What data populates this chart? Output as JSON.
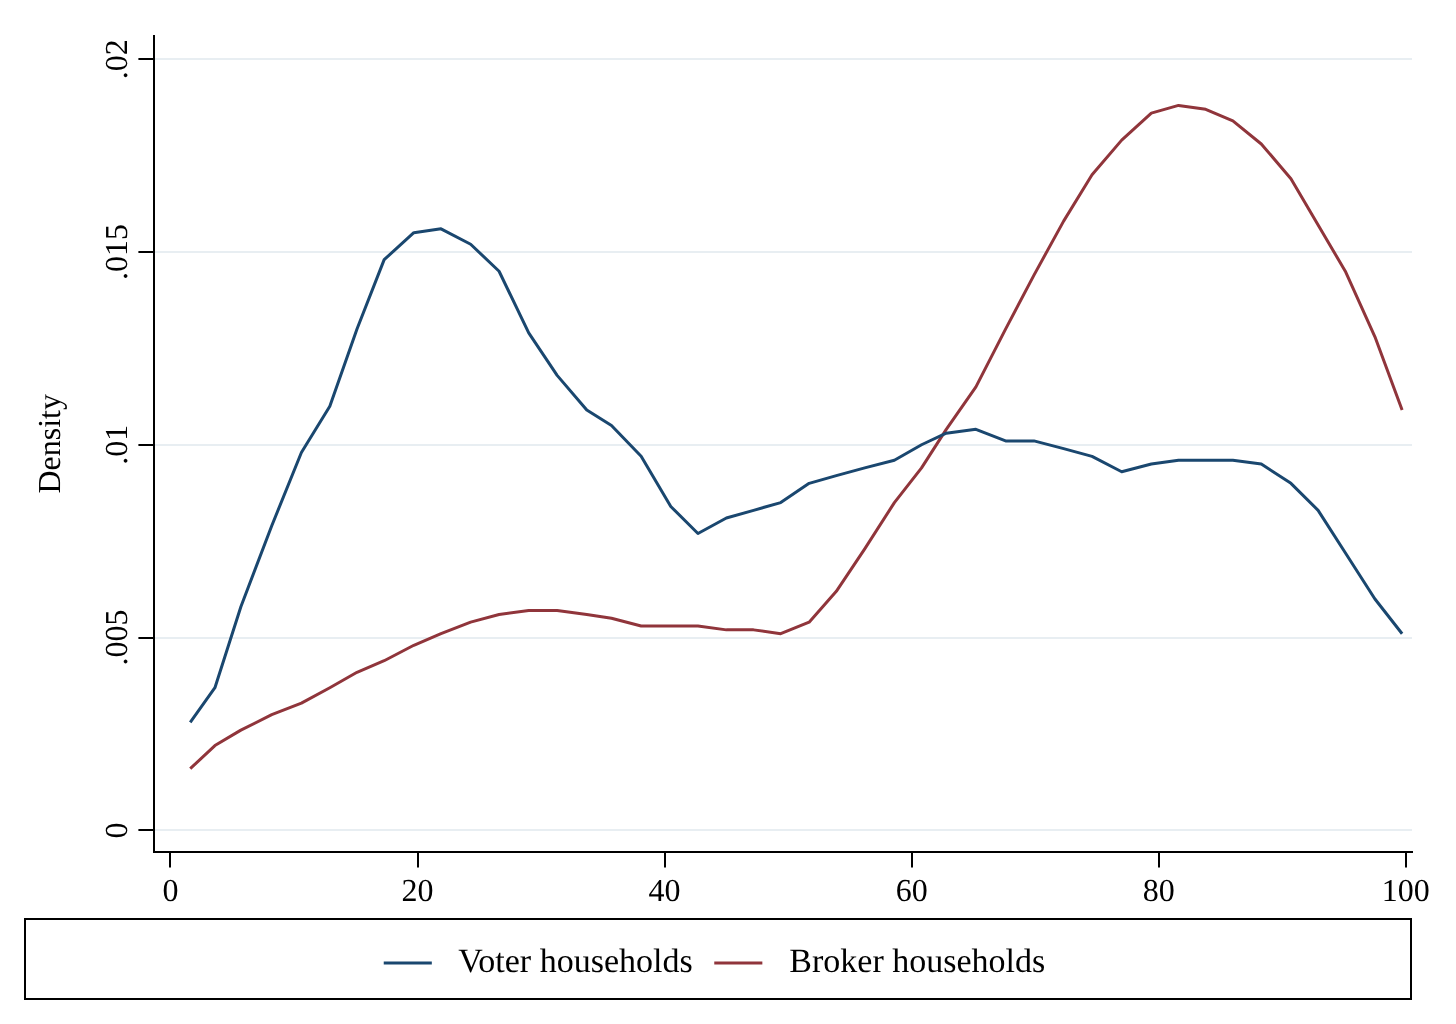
{
  "chart_data": {
    "type": "line",
    "ylabel": "Density",
    "xlim": [
      -1.3,
      100.5
    ],
    "ylim": [
      -0.00055,
      0.0206
    ],
    "xticks": [
      0,
      20,
      40,
      60,
      80,
      100
    ],
    "yticks": [
      {
        "value": 0,
        "label": "0"
      },
      {
        "value": 0.005,
        "label": ".005"
      },
      {
        "value": 0.01,
        "label": ".01"
      },
      {
        "value": 0.015,
        "label": ".015"
      },
      {
        "value": 0.02,
        "label": ".02"
      }
    ],
    "grid": "y",
    "legend": "bottom",
    "marker": "none",
    "line_style": "solid",
    "series": [
      {
        "name": "Voter households",
        "color": "#1a476f",
        "x": [
          1.6,
          3.6,
          5.7,
          8.2,
          10.6,
          12.9,
          15.1,
          17.3,
          19.7,
          21.9,
          24.3,
          26.6,
          29.0,
          31.3,
          33.7,
          35.7,
          38.1,
          40.5,
          42.7,
          45.0,
          47.2,
          49.4,
          51.7,
          53.9,
          56.2,
          58.6,
          60.8,
          62.8,
          65.2,
          67.6,
          69.9,
          72.3,
          74.6,
          77.0,
          79.4,
          81.6,
          83.8,
          86.0,
          88.3,
          90.7,
          92.9,
          95.1,
          97.5,
          99.7
        ],
        "values": [
          0.0028,
          0.0037,
          0.0058,
          0.0079,
          0.0098,
          0.011,
          0.013,
          0.0148,
          0.0155,
          0.0156,
          0.0152,
          0.0145,
          0.0129,
          0.0118,
          0.0109,
          0.0105,
          0.0097,
          0.0084,
          0.0077,
          0.0081,
          0.0083,
          0.0085,
          0.009,
          0.0092,
          0.0094,
          0.0096,
          0.01,
          0.0103,
          0.0104,
          0.0101,
          0.0101,
          0.0099,
          0.0097,
          0.0093,
          0.0095,
          0.0096,
          0.0096,
          0.0096,
          0.0095,
          0.009,
          0.0083,
          0.0072,
          0.006,
          0.0051
        ]
      },
      {
        "name": "Broker households",
        "color": "#90353b",
        "x": [
          1.6,
          3.6,
          5.7,
          8.2,
          10.6,
          12.9,
          15.1,
          17.3,
          19.7,
          21.9,
          24.3,
          26.6,
          29.0,
          31.3,
          33.7,
          35.7,
          38.1,
          40.5,
          42.7,
          45.0,
          47.2,
          49.4,
          51.7,
          53.9,
          56.2,
          58.6,
          60.8,
          62.8,
          65.2,
          67.6,
          69.9,
          72.3,
          74.6,
          77.0,
          79.4,
          81.6,
          83.8,
          86.0,
          88.3,
          90.7,
          92.9,
          95.1,
          97.5,
          99.7
        ],
        "values": [
          0.0016,
          0.0022,
          0.0026,
          0.003,
          0.0033,
          0.0037,
          0.0041,
          0.0044,
          0.0048,
          0.0051,
          0.0054,
          0.0056,
          0.0057,
          0.0057,
          0.0056,
          0.0055,
          0.0053,
          0.0053,
          0.0053,
          0.0052,
          0.0052,
          0.0051,
          0.0054,
          0.0062,
          0.0073,
          0.0085,
          0.0094,
          0.0104,
          0.0115,
          0.013,
          0.0144,
          0.0158,
          0.017,
          0.0179,
          0.0186,
          0.0188,
          0.0187,
          0.0184,
          0.0178,
          0.0169,
          0.0157,
          0.0145,
          0.0128,
          0.0109
        ]
      }
    ]
  }
}
